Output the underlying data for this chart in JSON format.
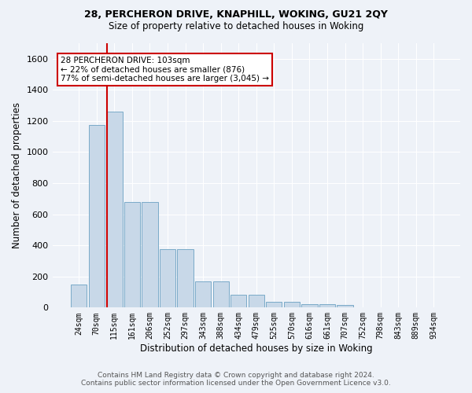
{
  "title1": "28, PERCHERON DRIVE, KNAPHILL, WOKING, GU21 2QY",
  "title2": "Size of property relative to detached houses in Woking",
  "xlabel": "Distribution of detached houses by size in Woking",
  "ylabel": "Number of detached properties",
  "categories": [
    "24sqm",
    "70sqm",
    "115sqm",
    "161sqm",
    "206sqm",
    "252sqm",
    "297sqm",
    "343sqm",
    "388sqm",
    "434sqm",
    "479sqm",
    "525sqm",
    "570sqm",
    "616sqm",
    "661sqm",
    "707sqm",
    "752sqm",
    "798sqm",
    "843sqm",
    "889sqm",
    "934sqm"
  ],
  "bar_values": [
    150,
    1175,
    1260,
    680,
    680,
    375,
    375,
    170,
    170,
    85,
    85,
    35,
    35,
    20,
    20,
    15,
    0,
    0,
    0,
    0,
    0
  ],
  "bar_color": "#c8d8e8",
  "bar_edge_color": "#7aaac8",
  "background_color": "#eef2f8",
  "grid_color": "#ffffff",
  "vline_color": "#cc0000",
  "annotation_text": "28 PERCHERON DRIVE: 103sqm\n← 22% of detached houses are smaller (876)\n77% of semi-detached houses are larger (3,045) →",
  "annotation_box_color": "#ffffff",
  "annotation_box_edge_color": "#cc0000",
  "ylim": [
    0,
    1700
  ],
  "yticks": [
    0,
    200,
    400,
    600,
    800,
    1000,
    1200,
    1400,
    1600
  ],
  "footer1": "Contains HM Land Registry data © Crown copyright and database right 2024.",
  "footer2": "Contains public sector information licensed under the Open Government Licence v3.0."
}
